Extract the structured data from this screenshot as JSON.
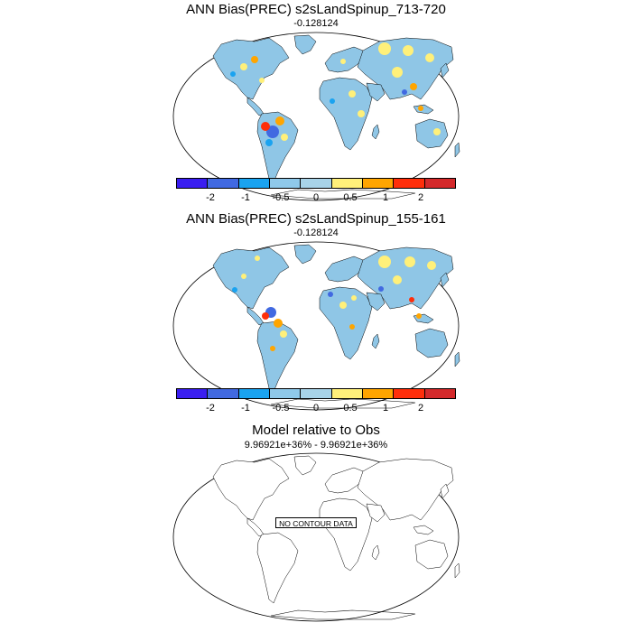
{
  "panels": [
    {
      "title": "ANN Bias(PREC) s2sLandSpinup_713-720",
      "subtitle": "-0.128124"
    },
    {
      "title": "ANN Bias(PREC) s2sLandSpinup_155-161",
      "subtitle": "-0.128124"
    },
    {
      "title": "Model relative to Obs",
      "subtitle": "9.96921e+36% - 9.96921e+36%",
      "message": "NO CONTOUR DATA"
    }
  ],
  "colorbar": {
    "colors": [
      "#3a1ef0",
      "#4169e1",
      "#1aa3f0",
      "#8fc9ea",
      "#a8d3e8",
      "#fff07a",
      "#ffa500",
      "#ff2e0a",
      "#d4292b"
    ],
    "tick_labels": [
      "-2",
      "-1",
      "-0.5",
      "0",
      "0.5",
      "1",
      "2"
    ]
  },
  "colors": {
    "land_base": "#8fc6e6",
    "dry_bias": "#fff07a",
    "strong_dry": "#ffa500",
    "very_dry": "#ff2e0a",
    "wet_bias": "#1aa3f0",
    "strong_wet": "#4169e1"
  }
}
